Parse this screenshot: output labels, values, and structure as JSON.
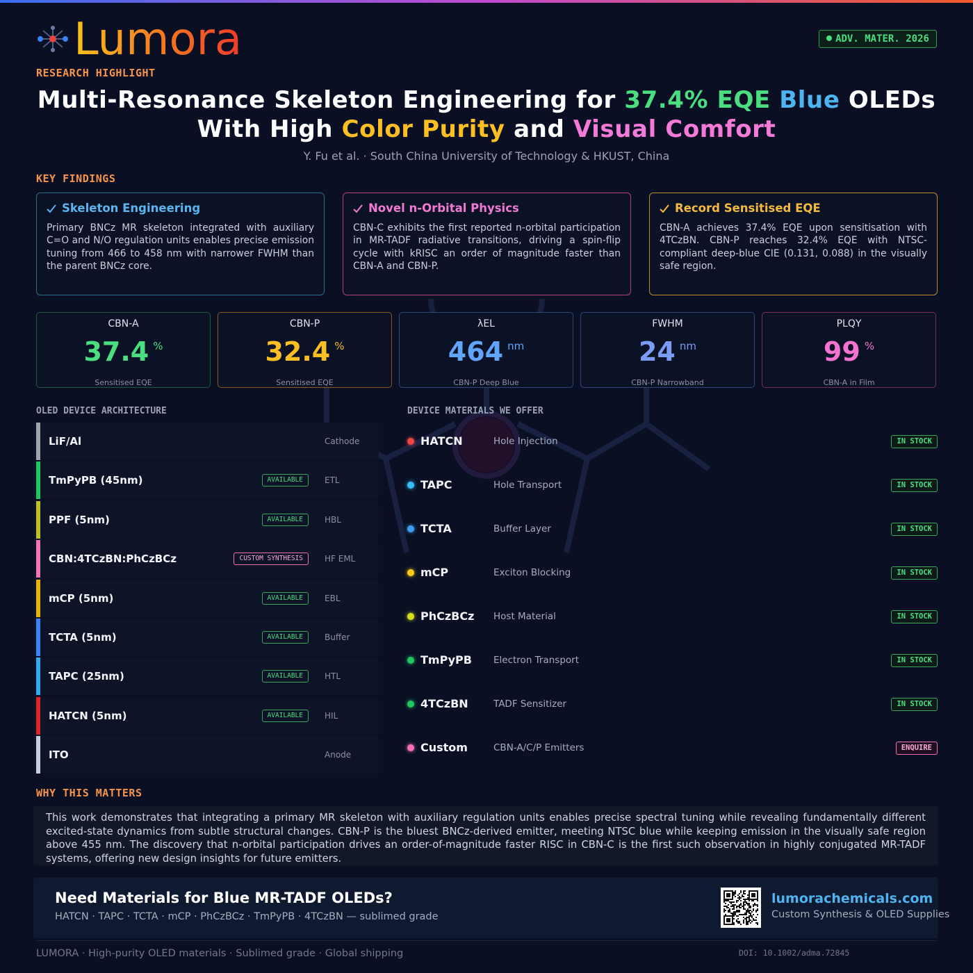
{
  "header": {
    "brand": "Lumora",
    "badge": "ADV. MATER. 2026",
    "kicker": "RESEARCH HIGHLIGHT",
    "title_line1": [
      "Multi-Resonance Skeleton Engineering for ",
      "37.4% EQE",
      " ",
      "Blue",
      " OLEDs"
    ],
    "title_line2": [
      "With High ",
      "Color Purity",
      " and ",
      "Visual Comfort"
    ],
    "authors": "Y. Fu et al. · South China University of Technology & HKUST, China"
  },
  "key_findings": {
    "heading": "KEY FINDINGS",
    "cards": [
      {
        "title": "Skeleton Engineering",
        "text": "Primary BNCz MR skeleton integrated with auxiliary C=O and N/O regulation units enables precise emission tuning from 466 to 458 nm with narrower FWHM than the parent BNCz core."
      },
      {
        "title": "Novel n-Orbital Physics",
        "text": "CBN-C exhibits the first reported n-orbital participation in MR-TADF radiative transitions, driving a spin-flip cycle with kRISC an order of magnitude faster than CBN-A and CBN-P."
      },
      {
        "title": "Record Sensitised EQE",
        "text": "CBN-A achieves 37.4% EQE upon sensitisation with 4TCzBN. CBN-P reaches 32.4% EQE with NTSC-compliant deep-blue CIE (0.131, 0.088) in the visually safe region."
      }
    ]
  },
  "stats": [
    {
      "label": "CBN-A",
      "value": "37.4",
      "unit": "%",
      "caption": "Sensitised EQE"
    },
    {
      "label": "CBN-P",
      "value": "32.4",
      "unit": "%",
      "caption": "Sensitised EQE"
    },
    {
      "label": "λEL",
      "value": "464",
      "unit": "nm",
      "caption": "CBN-P Deep Blue"
    },
    {
      "label": "FWHM",
      "value": "24",
      "unit": "nm",
      "caption": "CBN-P Narrowband"
    },
    {
      "label": "PLQY",
      "value": "99",
      "unit": "%",
      "caption": "CBN-A in Film"
    }
  ],
  "architecture": {
    "heading": "OLED DEVICE ARCHITECTURE",
    "layers": [
      {
        "name": "LiF/Al",
        "role": "Cathode"
      },
      {
        "name": "TmPyPB (45nm)",
        "tag": "AVAILABLE",
        "role": "ETL"
      },
      {
        "name": "PPF (5nm)",
        "tag": "AVAILABLE",
        "role": "HBL"
      },
      {
        "name": "CBN:4TCzBN:PhCzBCz",
        "tag": "CUSTOM SYNTHESIS",
        "role": "HF EML"
      },
      {
        "name": "mCP (5nm)",
        "tag": "AVAILABLE",
        "role": "EBL"
      },
      {
        "name": "TCTA (5nm)",
        "tag": "AVAILABLE",
        "role": "Buffer"
      },
      {
        "name": "TAPC (25nm)",
        "tag": "AVAILABLE",
        "role": "HTL"
      },
      {
        "name": "HATCN (5nm)",
        "tag": "AVAILABLE",
        "role": "HIL"
      },
      {
        "name": "ITO",
        "role": "Anode"
      }
    ]
  },
  "materials": {
    "heading": "DEVICE MATERIALS WE OFFER",
    "items": [
      {
        "name": "HATCN",
        "role": "Hole Injection",
        "status": "IN STOCK"
      },
      {
        "name": "TAPC",
        "role": "Hole Transport",
        "status": "IN STOCK"
      },
      {
        "name": "TCTA",
        "role": "Buffer Layer",
        "status": "IN STOCK"
      },
      {
        "name": "mCP",
        "role": "Exciton Blocking",
        "status": "IN STOCK"
      },
      {
        "name": "PhCzBCz",
        "role": "Host Material",
        "status": "IN STOCK"
      },
      {
        "name": "TmPyPB",
        "role": "Electron Transport",
        "status": "IN STOCK"
      },
      {
        "name": "4TCzBN",
        "role": "TADF Sensitizer",
        "status": "IN STOCK"
      },
      {
        "name": "Custom",
        "role": "CBN-A/C/P Emitters",
        "status": "ENQUIRE"
      }
    ]
  },
  "why": {
    "heading": "WHY THIS MATTERS",
    "text": "This work demonstrates that integrating a primary MR skeleton with auxiliary regulation units enables precise spectral tuning while revealing fundamentally different excited-state dynamics from subtle structural changes. CBN-P is the bluest BNCz-derived emitter, meeting NTSC blue while keeping emission in the visually safe region above 455 nm. The discovery that n-orbital participation drives an order-of-magnitude faster RISC in CBN-C is the first such observation in highly conjugated MR-TADF systems, offering new design insights for future emitters."
  },
  "cta": {
    "title": "Need Materials for Blue MR-TADF OLEDs?",
    "subtitle": "HATCN · TAPC · TCTA · mCP · PhCzBCz · TmPyPB · 4TCzBN — sublimed grade",
    "site": "lumorachemicals.com",
    "site_sub": "Custom Synthesis & OLED Supplies"
  },
  "footer": {
    "left": "LUMORA · High-purity OLED materials · Sublimed grade · Global shipping",
    "doi": "DOI: 10.1002/adma.72845"
  }
}
